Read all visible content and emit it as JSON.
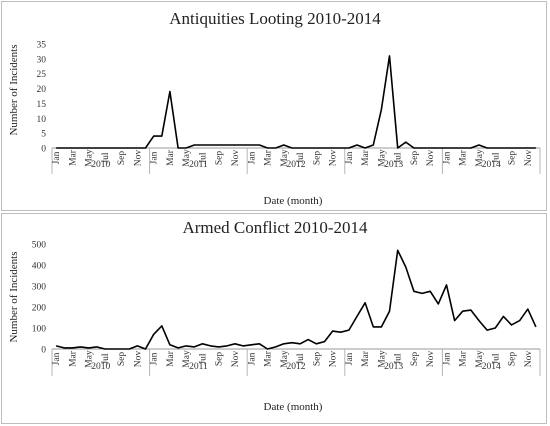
{
  "chart_data": [
    {
      "type": "line",
      "title": "Antiquities Looting 2010-2014",
      "xlabel": "Date (month)",
      "ylabel": "Number of Incidents",
      "ylim": [
        0,
        35
      ],
      "yticks": [
        0,
        5,
        10,
        15,
        20,
        25,
        30,
        35
      ],
      "month_labels": [
        "Jan",
        "Mar",
        "May",
        "Jul",
        "Sep",
        "Nov"
      ],
      "years": [
        "2010",
        "2011",
        "2012",
        "2013",
        "2014"
      ],
      "grid": false,
      "legend": "none",
      "series": [
        {
          "values": [
            0,
            0,
            0,
            0,
            0,
            0,
            0,
            0,
            0,
            0,
            0,
            0,
            4,
            4,
            19,
            0,
            0,
            1,
            1,
            1,
            1,
            1,
            1,
            1,
            1,
            1,
            0,
            0,
            1,
            0,
            0,
            0,
            0,
            0,
            0,
            0,
            0,
            1,
            0,
            1,
            13,
            31,
            0,
            2,
            0,
            0,
            0,
            0,
            0,
            0,
            0,
            0,
            1,
            0,
            0,
            0,
            0,
            0,
            0,
            0
          ]
        }
      ]
    },
    {
      "type": "line",
      "title": "Armed Conflict 2010-2014",
      "xlabel": "Date (month)",
      "ylabel": "Number of Incidents",
      "ylim": [
        0,
        500
      ],
      "yticks": [
        0,
        100,
        200,
        300,
        400,
        500
      ],
      "month_labels": [
        "Jan",
        "Mar",
        "May",
        "Jul",
        "Sep",
        "Nov"
      ],
      "years": [
        "2010",
        "2011",
        "2012",
        "2013",
        "2014"
      ],
      "grid": false,
      "legend": "none",
      "series": [
        {
          "values": [
            15,
            5,
            5,
            10,
            5,
            10,
            0,
            0,
            0,
            0,
            15,
            0,
            70,
            110,
            20,
            5,
            15,
            10,
            25,
            15,
            10,
            15,
            25,
            15,
            20,
            25,
            0,
            10,
            25,
            30,
            25,
            45,
            25,
            35,
            85,
            80,
            90,
            155,
            220,
            105,
            105,
            180,
            470,
            390,
            275,
            265,
            275,
            215,
            305,
            135,
            180,
            185,
            135,
            90,
            100,
            155,
            115,
            135,
            190,
            105
          ]
        }
      ]
    }
  ]
}
